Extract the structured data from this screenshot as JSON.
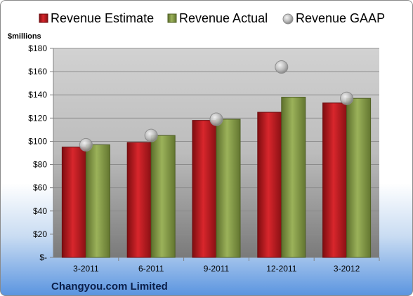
{
  "chart_data": {
    "type": "bar",
    "categories": [
      "3-2011",
      "6-2011",
      "9-2011",
      "12-2011",
      "3-2012"
    ],
    "series": [
      {
        "name": "Revenue Estimate",
        "kind": "bar",
        "color": "#c0161d",
        "values": [
          95,
          99,
          118,
          125,
          133
        ]
      },
      {
        "name": "Revenue Actual",
        "kind": "bar",
        "color": "#8aa04a",
        "values": [
          97,
          105,
          119,
          138,
          137
        ]
      },
      {
        "name": "Revenue GAAP",
        "kind": "marker",
        "color": "#b9b9b9",
        "values": [
          97,
          105,
          119,
          164,
          137
        ]
      }
    ],
    "ylabel": "$millions",
    "ylim": [
      0,
      180
    ],
    "yticks": [
      0,
      20,
      40,
      60,
      80,
      100,
      120,
      140,
      160,
      180
    ],
    "ytick_labels": [
      "$-",
      "$20",
      "$40",
      "$60",
      "$80",
      "$100",
      "$120",
      "$140",
      "$160",
      "$180"
    ],
    "grid": true,
    "legend": "top"
  },
  "footer": {
    "company": "Changyou.com Limited"
  }
}
